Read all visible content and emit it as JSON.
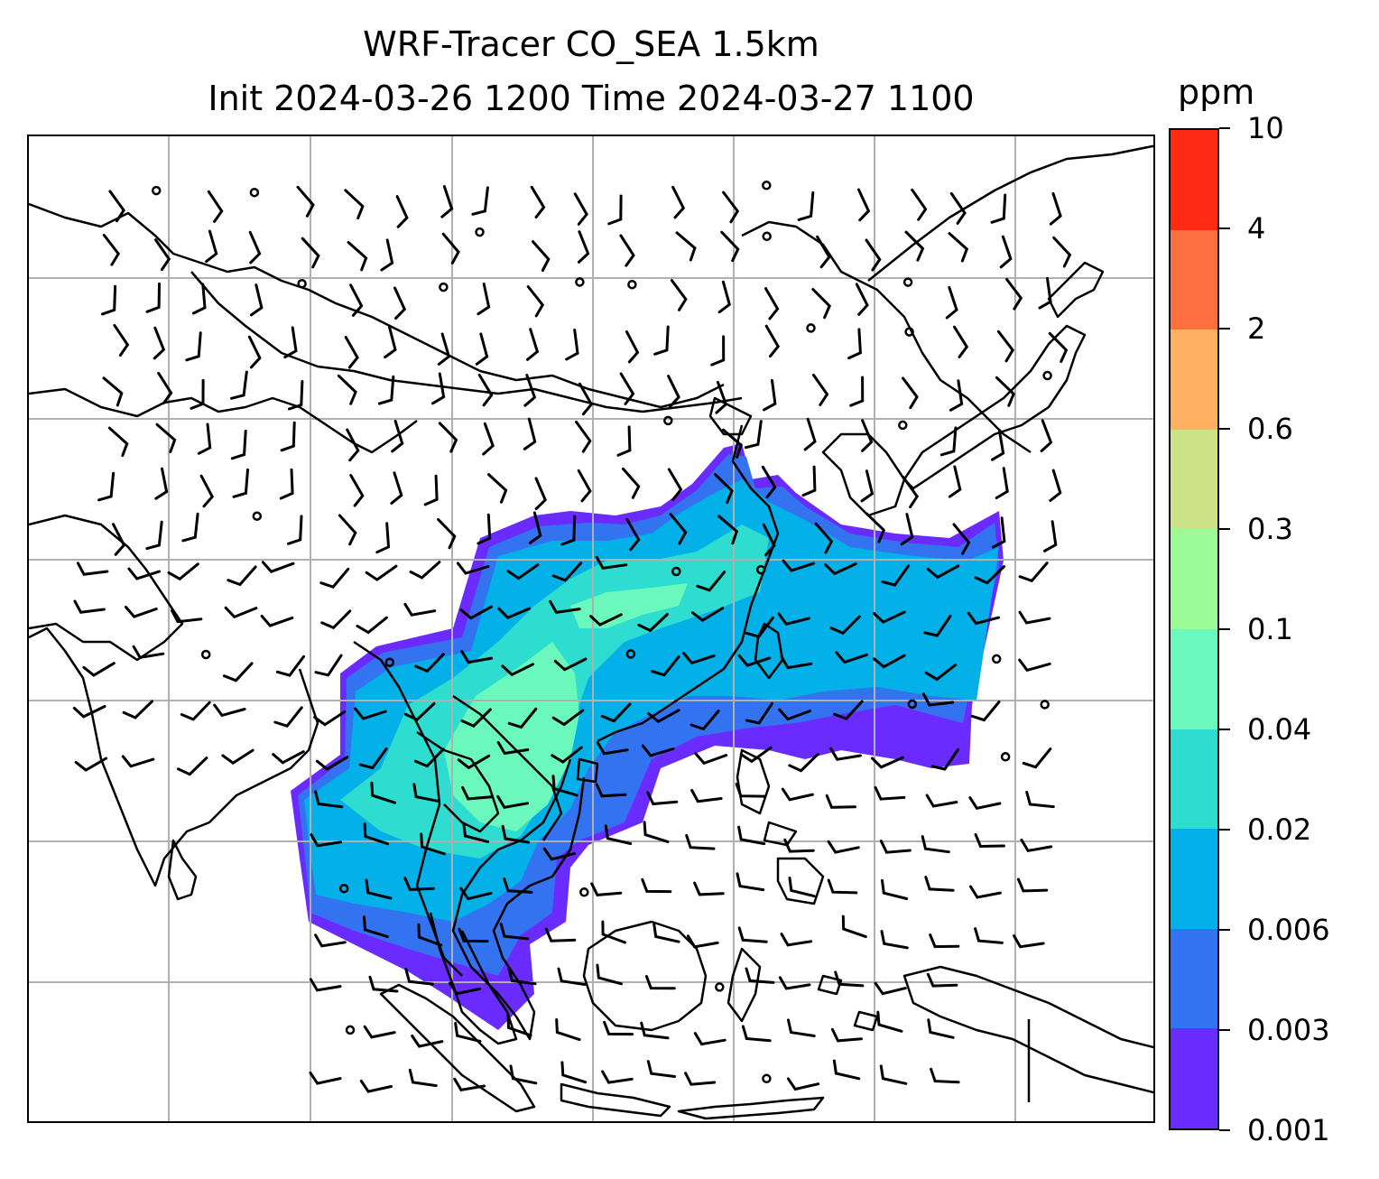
{
  "title": {
    "line1": "WRF-Tracer CO_SEA 1.5km",
    "line2": "Init 2024-03-26 1200 Time 2024-03-27 1100"
  },
  "colorbar": {
    "unit": "ppm",
    "levels": [
      "0.001",
      "0.003",
      "0.006",
      "0.02",
      "0.04",
      "0.1",
      "0.3",
      "0.6",
      "2",
      "4",
      "10"
    ],
    "colors": [
      "#6a2bff",
      "#3373f0",
      "#03b0e8",
      "#2fdcd0",
      "#6af8bd",
      "#9afb97",
      "#cde286",
      "#ffb060",
      "#ff7040",
      "#ff2a14"
    ]
  },
  "map": {
    "gridline_color": "#b0b0b0",
    "coastline_color": "#000000",
    "plume_colors": {
      "lowest": "#6a2bff",
      "low": "#3373f0",
      "mid": "#03b0e8",
      "high": "#2fdcd0",
      "peak": "#6af8bd"
    }
  }
}
